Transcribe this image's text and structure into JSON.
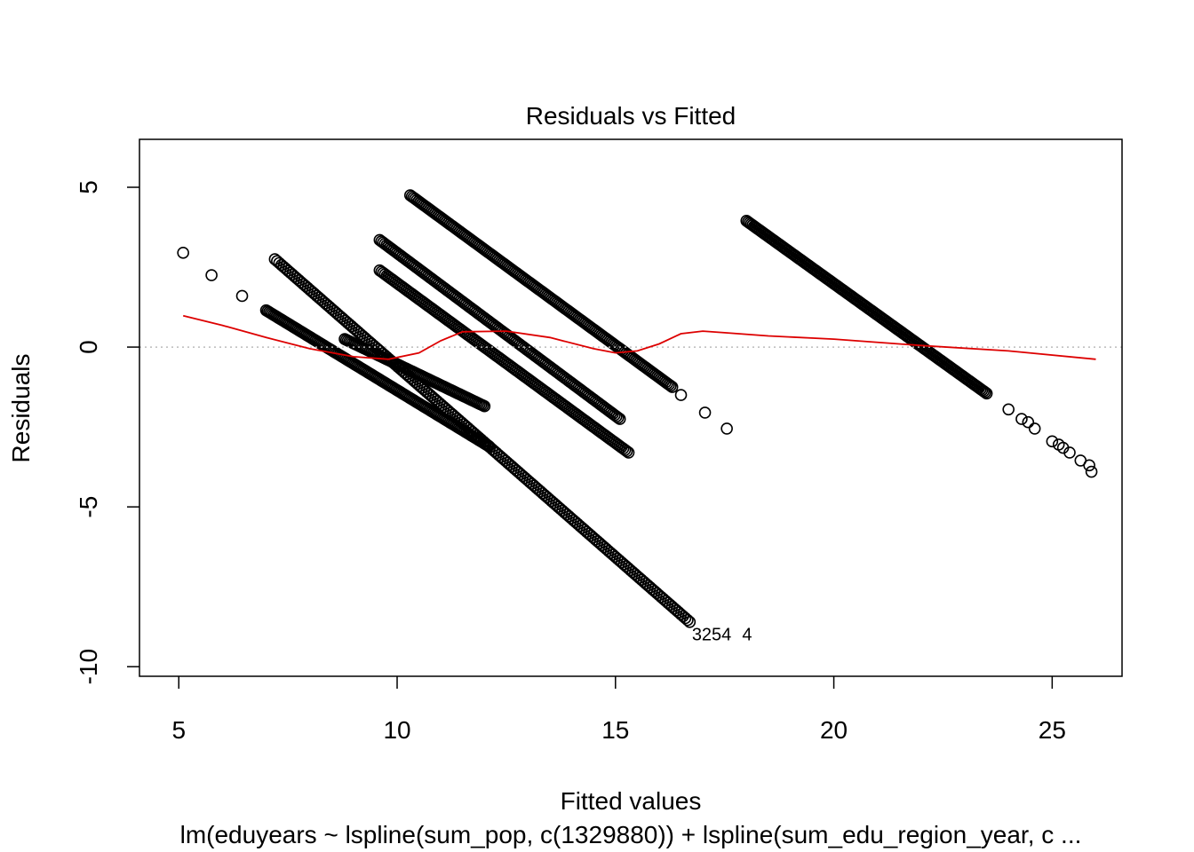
{
  "chart_data": {
    "type": "scatter",
    "title": "Residuals vs Fitted",
    "xlabel": "Fitted values",
    "ylabel": "Residuals",
    "subtitle": "lm(eduyears ~ lspline(sum_pop, c(1329880)) + lspline(sum_edu_region_year, c ...",
    "xlim": [
      4.1,
      26.6
    ],
    "ylim": [
      -10.3,
      6.5
    ],
    "xticks": [
      5,
      10,
      15,
      20,
      25
    ],
    "yticks": [
      -10,
      -5,
      0,
      5
    ],
    "reference_line": {
      "y": 0,
      "style": "dotted",
      "color": "#bbbbbb"
    },
    "point_style": {
      "shape": "open-circle",
      "color": "#000000"
    },
    "smooth_color": "#dd0000",
    "bands": [
      {
        "x": [
          7.2,
          16.7
        ],
        "y": [
          2.75,
          -8.6
        ],
        "n": 190
      },
      {
        "x": [
          7.0,
          12.1
        ],
        "y": [
          1.15,
          -3.1
        ],
        "n": 150
      },
      {
        "x": [
          8.8,
          12.0
        ],
        "y": [
          0.25,
          -1.85
        ],
        "n": 90
      },
      {
        "x": [
          9.6,
          15.3
        ],
        "y": [
          2.4,
          -3.3
        ],
        "n": 140
      },
      {
        "x": [
          9.6,
          15.1
        ],
        "y": [
          3.35,
          -2.25
        ],
        "n": 140
      },
      {
        "x": [
          10.3,
          16.3
        ],
        "y": [
          4.75,
          -1.25
        ],
        "n": 160
      },
      {
        "x": [
          18.0,
          23.5
        ],
        "y": [
          3.95,
          -1.45
        ],
        "n": 160
      }
    ],
    "extra_points": [
      {
        "x": 5.1,
        "y": 2.95
      },
      {
        "x": 5.75,
        "y": 2.25
      },
      {
        "x": 6.45,
        "y": 1.6
      },
      {
        "x": 16.5,
        "y": -1.5
      },
      {
        "x": 17.05,
        "y": -2.05
      },
      {
        "x": 17.55,
        "y": -2.55
      },
      {
        "x": 24.0,
        "y": -1.95
      },
      {
        "x": 24.3,
        "y": -2.25
      },
      {
        "x": 24.45,
        "y": -2.35
      },
      {
        "x": 24.6,
        "y": -2.55
      },
      {
        "x": 25.0,
        "y": -2.95
      },
      {
        "x": 25.15,
        "y": -3.05
      },
      {
        "x": 25.25,
        "y": -3.15
      },
      {
        "x": 25.4,
        "y": -3.3
      },
      {
        "x": 25.65,
        "y": -3.55
      },
      {
        "x": 25.85,
        "y": -3.7
      },
      {
        "x": 25.9,
        "y": -3.9
      }
    ],
    "smooth": [
      {
        "x": 5.1,
        "y": 0.98
      },
      {
        "x": 6.0,
        "y": 0.68
      },
      {
        "x": 7.0,
        "y": 0.3
      },
      {
        "x": 8.0,
        "y": -0.05
      },
      {
        "x": 9.0,
        "y": -0.3
      },
      {
        "x": 9.8,
        "y": -0.38
      },
      {
        "x": 10.5,
        "y": -0.18
      },
      {
        "x": 11.0,
        "y": 0.2
      },
      {
        "x": 11.5,
        "y": 0.48
      },
      {
        "x": 12.5,
        "y": 0.5
      },
      {
        "x": 13.5,
        "y": 0.3
      },
      {
        "x": 14.5,
        "y": -0.05
      },
      {
        "x": 15.0,
        "y": -0.18
      },
      {
        "x": 15.5,
        "y": -0.12
      },
      {
        "x": 16.0,
        "y": 0.1
      },
      {
        "x": 16.5,
        "y": 0.42
      },
      {
        "x": 17.0,
        "y": 0.5
      },
      {
        "x": 17.5,
        "y": 0.45
      },
      {
        "x": 18.5,
        "y": 0.35
      },
      {
        "x": 20.0,
        "y": 0.25
      },
      {
        "x": 22.0,
        "y": 0.05
      },
      {
        "x": 24.0,
        "y": -0.12
      },
      {
        "x": 26.0,
        "y": -0.38
      }
    ],
    "point_labels": [
      {
        "x": 16.75,
        "y": -8.95,
        "text": "3254"
      },
      {
        "x": 17.9,
        "y": -8.95,
        "text": "4"
      }
    ]
  }
}
